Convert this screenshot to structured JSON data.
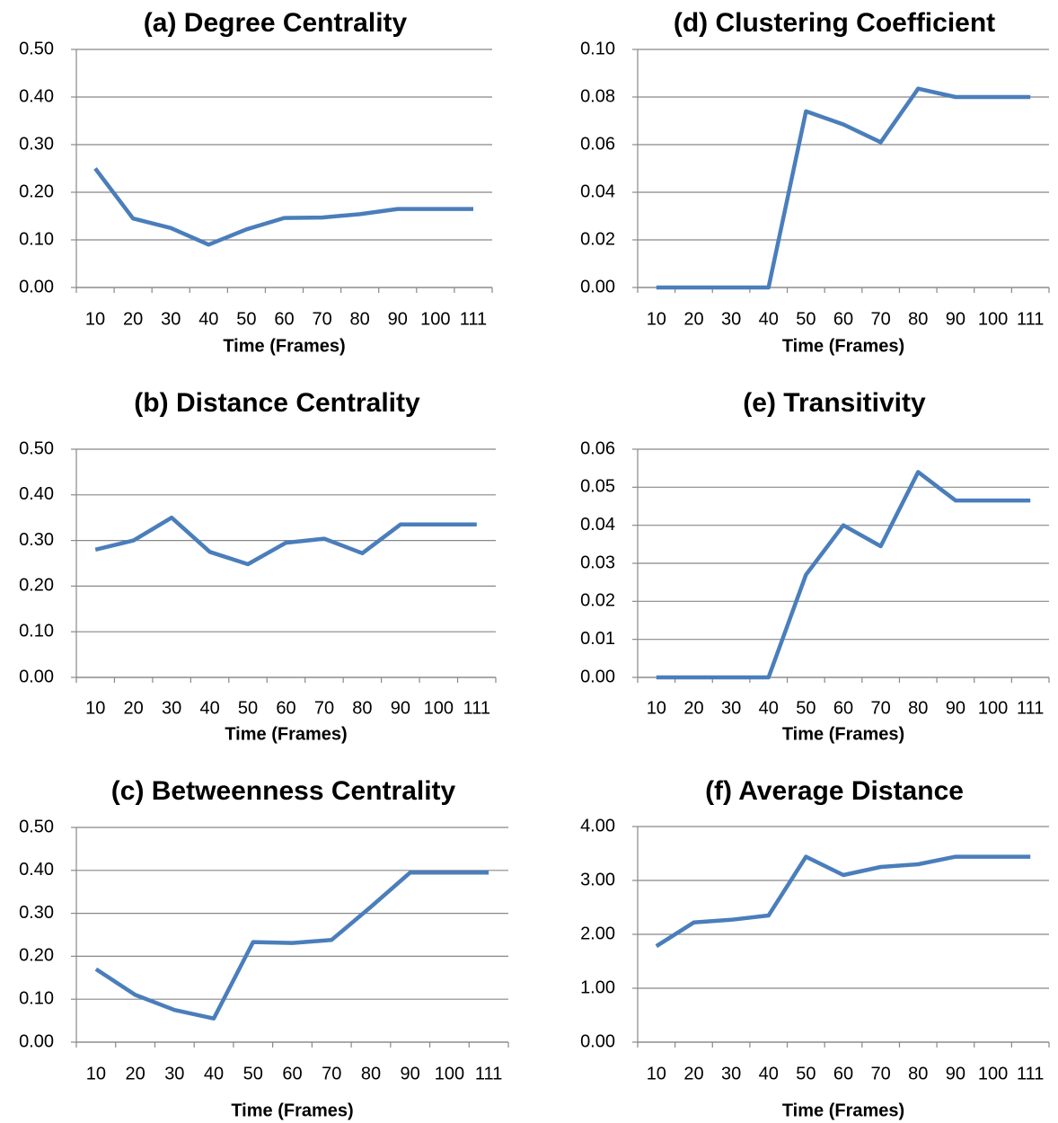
{
  "chart_data": [
    {
      "type": "line",
      "title": "(a) Degree Centrality",
      "x_label": "Time (Frames)",
      "categories": [
        "10",
        "20",
        "30",
        "40",
        "50",
        "60",
        "70",
        "80",
        "90",
        "100",
        "111"
      ],
      "values": [
        0.25,
        0.145,
        0.125,
        0.09,
        0.122,
        0.146,
        0.147,
        0.154,
        0.165,
        0.165,
        0.165
      ],
      "color": "#4a7ebb",
      "ylim": [
        0,
        0.5
      ],
      "yticks": [
        {
          "value": 0,
          "label": "0.00"
        },
        {
          "value": 0.1,
          "label": "0.10"
        },
        {
          "value": 0.2,
          "label": "0.20"
        },
        {
          "value": 0.3,
          "label": "0.30"
        },
        {
          "value": 0.4,
          "label": "0.40"
        },
        {
          "value": 0.5,
          "label": "0.50"
        }
      ],
      "grid": true
    },
    {
      "type": "line",
      "title": "(b) Distance Centrality",
      "x_label": "Time (Frames)",
      "categories": [
        "10",
        "20",
        "30",
        "40",
        "50",
        "60",
        "70",
        "80",
        "90",
        "100",
        "111"
      ],
      "values": [
        0.28,
        0.3,
        0.35,
        0.275,
        0.248,
        0.295,
        0.304,
        0.272,
        0.335,
        0.335,
        0.335
      ],
      "color": "#4a7ebb",
      "ylim": [
        0,
        0.5
      ],
      "yticks": [
        {
          "value": 0,
          "label": "0.00"
        },
        {
          "value": 0.1,
          "label": "0.10"
        },
        {
          "value": 0.2,
          "label": "0.20"
        },
        {
          "value": 0.3,
          "label": "0.30"
        },
        {
          "value": 0.4,
          "label": "0.40"
        },
        {
          "value": 0.5,
          "label": "0.50"
        }
      ],
      "grid": true
    },
    {
      "type": "line",
      "title": "(c) Betweenness Centrality",
      "x_label": "Time (Frames)",
      "categories": [
        "10",
        "20",
        "30",
        "40",
        "50",
        "60",
        "70",
        "80",
        "90",
        "100",
        "111"
      ],
      "values": [
        0.17,
        0.11,
        0.075,
        0.055,
        0.233,
        0.231,
        0.238,
        0.315,
        0.395,
        0.395,
        0.395
      ],
      "color": "#4a7ebb",
      "ylim": [
        0,
        0.5
      ],
      "yticks": [
        {
          "value": 0,
          "label": "0.00"
        },
        {
          "value": 0.1,
          "label": "0.10"
        },
        {
          "value": 0.2,
          "label": "0.20"
        },
        {
          "value": 0.3,
          "label": "0.30"
        },
        {
          "value": 0.4,
          "label": "0.40"
        },
        {
          "value": 0.5,
          "label": "0.50"
        }
      ],
      "grid": true
    },
    {
      "type": "line",
      "title": "(d) Clustering Coefficient",
      "x_label": "Time (Frames)",
      "categories": [
        "10",
        "20",
        "30",
        "40",
        "50",
        "60",
        "70",
        "80",
        "90",
        "100",
        "111"
      ],
      "values": [
        0,
        0,
        0,
        0,
        0.074,
        0.0685,
        0.061,
        0.0835,
        0.08,
        0.08,
        0.08
      ],
      "color": "#4a7ebb",
      "ylim": [
        0,
        0.1
      ],
      "yticks": [
        {
          "value": 0,
          "label": "0.00"
        },
        {
          "value": 0.02,
          "label": "0.02"
        },
        {
          "value": 0.04,
          "label": "0.04"
        },
        {
          "value": 0.06,
          "label": "0.06"
        },
        {
          "value": 0.08,
          "label": "0.08"
        },
        {
          "value": 0.1,
          "label": "0.10"
        }
      ],
      "grid": true
    },
    {
      "type": "line",
      "title": "(e) Transitivity",
      "x_label": "Time (Frames)",
      "categories": [
        "10",
        "20",
        "30",
        "40",
        "50",
        "60",
        "70",
        "80",
        "90",
        "100",
        "111"
      ],
      "values": [
        0,
        0,
        0,
        0,
        0.027,
        0.04,
        0.0345,
        0.054,
        0.0465,
        0.0465,
        0.0465
      ],
      "color": "#4a7ebb",
      "ylim": [
        0,
        0.06
      ],
      "yticks": [
        {
          "value": 0,
          "label": "0.00"
        },
        {
          "value": 0.01,
          "label": "0.01"
        },
        {
          "value": 0.02,
          "label": "0.02"
        },
        {
          "value": 0.03,
          "label": "0.03"
        },
        {
          "value": 0.04,
          "label": "0.04"
        },
        {
          "value": 0.05,
          "label": "0.05"
        },
        {
          "value": 0.06,
          "label": "0.06"
        }
      ],
      "grid": true
    },
    {
      "type": "line",
      "title": "(f) Average Distance",
      "x_label": "Time (Frames)",
      "categories": [
        "10",
        "20",
        "30",
        "40",
        "50",
        "60",
        "70",
        "80",
        "90",
        "100",
        "111"
      ],
      "values": [
        1.78,
        2.22,
        2.27,
        2.35,
        3.44,
        3.1,
        3.25,
        3.3,
        3.44,
        3.44,
        3.44
      ],
      "color": "#4a7ebb",
      "ylim": [
        0,
        4
      ],
      "yticks": [
        {
          "value": 0,
          "label": "0.00"
        },
        {
          "value": 1,
          "label": "1.00"
        },
        {
          "value": 2,
          "label": "2.00"
        },
        {
          "value": 3,
          "label": "3.00"
        },
        {
          "value": 4,
          "label": "4.00"
        }
      ],
      "grid": true
    }
  ]
}
